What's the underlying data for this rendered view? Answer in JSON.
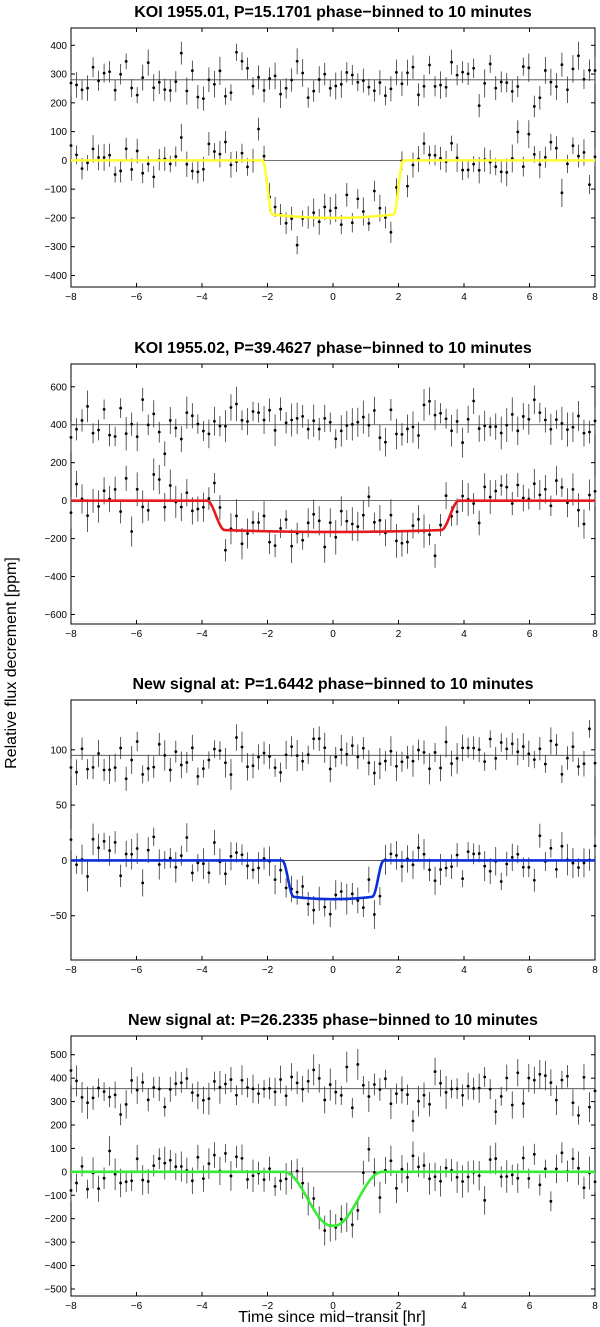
{
  "figure": {
    "ylabel": "Relative flux decrement [ppm]",
    "xlabel": "Time since mid−transit [hr]"
  },
  "chart_data": [
    {
      "type": "scatter",
      "title": "KOI 1955.01, P=15.1701 phase−binned to 10 minutes",
      "xlim": [
        -8,
        8
      ],
      "ylim": [
        -440,
        460
      ],
      "xticks": [
        -8,
        -6,
        -4,
        -2,
        0,
        2,
        4,
        6,
        8
      ],
      "yticks": [
        -400,
        -300,
        -200,
        -100,
        0,
        100,
        200,
        300,
        400
      ],
      "offset_line": 280,
      "model_color": "#ffff33",
      "transit": {
        "depth": 200,
        "t1": 2.15,
        "t2": 1.85
      },
      "noise": 40,
      "error": 38,
      "seed": 11
    },
    {
      "type": "scatter",
      "title": "KOI 1955.02, P=39.4627 phase−binned to 10 minutes",
      "xlim": [
        -8,
        8
      ],
      "ylim": [
        -650,
        720
      ],
      "xticks": [
        -8,
        -6,
        -4,
        -2,
        0,
        2,
        4,
        6,
        8
      ],
      "yticks": [
        -600,
        -400,
        -200,
        0,
        200,
        400,
        600
      ],
      "offset_line": 400,
      "model_color": "#e41a1c",
      "transit": {
        "depth": 165,
        "t1": 3.85,
        "t2": 3.3
      },
      "noise": 60,
      "error": 70,
      "seed": 23
    },
    {
      "type": "scatter",
      "title": "New signal at: P=1.6442 phase−binned to 10 minutes",
      "xlim": [
        -8,
        8
      ],
      "ylim": [
        -90,
        145
      ],
      "xticks": [
        -8,
        -6,
        -4,
        -2,
        0,
        2,
        4,
        6,
        8
      ],
      "yticks": [
        -50,
        0,
        50,
        100
      ],
      "offset_line": 95,
      "model_color": "#0a2ed8",
      "transit": {
        "depth": 35,
        "t1": 1.55,
        "t2": 1.2
      },
      "noise": 10,
      "error": 11,
      "seed": 37
    },
    {
      "type": "scatter",
      "title": "New signal at: P=26.2335 phase−binned to 10 minutes",
      "xlim": [
        -8,
        8
      ],
      "ylim": [
        -530,
        580
      ],
      "xticks": [
        -8,
        -6,
        -4,
        -2,
        0,
        2,
        4,
        6,
        8
      ],
      "yticks": [
        -500,
        -400,
        -300,
        -200,
        -100,
        0,
        100,
        200,
        300,
        400,
        500
      ],
      "offset_line": 355,
      "model_color": "#33ee33",
      "transit": {
        "depth": 230,
        "t1": 1.5,
        "t2": 0.05
      },
      "noise": 55,
      "error": 55,
      "seed": 53
    }
  ]
}
